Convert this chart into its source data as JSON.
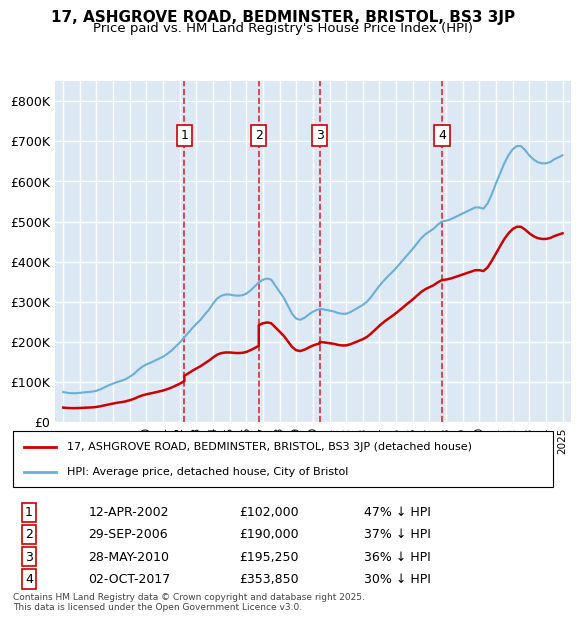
{
  "title1": "17, ASHGROVE ROAD, BEDMINSTER, BRISTOL, BS3 3JP",
  "title2": "Price paid vs. HM Land Registry's House Price Index (HPI)",
  "legend_label1": "17, ASHGROVE ROAD, BEDMINSTER, BRISTOL, BS3 3JP (detached house)",
  "legend_label2": "HPI: Average price, detached house, City of Bristol",
  "footnote": "Contains HM Land Registry data © Crown copyright and database right 2025.\nThis data is licensed under the Open Government Licence v3.0.",
  "sale_markers": [
    {
      "num": 1,
      "date": "12-APR-2002",
      "price": 102000,
      "pct": "47% ↓ HPI",
      "x": 2002.28
    },
    {
      "num": 2,
      "date": "29-SEP-2006",
      "price": 190000,
      "pct": "37% ↓ HPI",
      "x": 2006.75
    },
    {
      "num": 3,
      "date": "28-MAY-2010",
      "price": 195250,
      "pct": "36% ↓ HPI",
      "x": 2010.41
    },
    {
      "num": 4,
      "date": "02-OCT-2017",
      "price": 353850,
      "pct": "30% ↓ HPI",
      "x": 2017.75
    }
  ],
  "hpi_color": "#6baed6",
  "price_color": "#cc0000",
  "marker_box_color": "#cc0000",
  "background_color": "#dce9f5",
  "plot_bg": "#dce9f5",
  "grid_color": "#ffffff",
  "ylim": [
    0,
    850000
  ],
  "xlim": [
    1994.5,
    2025.5
  ],
  "yticks": [
    0,
    100000,
    200000,
    300000,
    400000,
    500000,
    600000,
    700000,
    800000
  ],
  "hpi_data": {
    "x": [
      1995.0,
      1995.25,
      1995.5,
      1995.75,
      1996.0,
      1996.25,
      1996.5,
      1996.75,
      1997.0,
      1997.25,
      1997.5,
      1997.75,
      1998.0,
      1998.25,
      1998.5,
      1998.75,
      1999.0,
      1999.25,
      1999.5,
      1999.75,
      2000.0,
      2000.25,
      2000.5,
      2000.75,
      2001.0,
      2001.25,
      2001.5,
      2001.75,
      2002.0,
      2002.25,
      2002.5,
      2002.75,
      2003.0,
      2003.25,
      2003.5,
      2003.75,
      2004.0,
      2004.25,
      2004.5,
      2004.75,
      2005.0,
      2005.25,
      2005.5,
      2005.75,
      2006.0,
      2006.25,
      2006.5,
      2006.75,
      2007.0,
      2007.25,
      2007.5,
      2007.75,
      2008.0,
      2008.25,
      2008.5,
      2008.75,
      2009.0,
      2009.25,
      2009.5,
      2009.75,
      2010.0,
      2010.25,
      2010.5,
      2010.75,
      2011.0,
      2011.25,
      2011.5,
      2011.75,
      2012.0,
      2012.25,
      2012.5,
      2012.75,
      2013.0,
      2013.25,
      2013.5,
      2013.75,
      2014.0,
      2014.25,
      2014.5,
      2014.75,
      2015.0,
      2015.25,
      2015.5,
      2015.75,
      2016.0,
      2016.25,
      2016.5,
      2016.75,
      2017.0,
      2017.25,
      2017.5,
      2017.75,
      2018.0,
      2018.25,
      2018.5,
      2018.75,
      2019.0,
      2019.25,
      2019.5,
      2019.75,
      2020.0,
      2020.25,
      2020.5,
      2020.75,
      2021.0,
      2021.25,
      2021.5,
      2021.75,
      2022.0,
      2022.25,
      2022.5,
      2022.75,
      2023.0,
      2023.25,
      2023.5,
      2023.75,
      2024.0,
      2024.25,
      2024.5,
      2024.75,
      2025.0
    ],
    "y": [
      75000,
      73000,
      72000,
      72000,
      73000,
      74000,
      75000,
      76000,
      78000,
      82000,
      87000,
      92000,
      96000,
      100000,
      103000,
      107000,
      113000,
      120000,
      130000,
      138000,
      144000,
      148000,
      153000,
      158000,
      163000,
      170000,
      178000,
      188000,
      198000,
      210000,
      222000,
      234000,
      245000,
      255000,
      268000,
      280000,
      295000,
      308000,
      315000,
      318000,
      318000,
      316000,
      315000,
      316000,
      320000,
      328000,
      338000,
      348000,
      355000,
      358000,
      355000,
      340000,
      325000,
      310000,
      290000,
      270000,
      258000,
      255000,
      260000,
      268000,
      275000,
      280000,
      282000,
      280000,
      278000,
      276000,
      272000,
      270000,
      270000,
      274000,
      280000,
      286000,
      292000,
      300000,
      312000,
      326000,
      340000,
      352000,
      363000,
      373000,
      384000,
      396000,
      408000,
      420000,
      432000,
      445000,
      458000,
      468000,
      475000,
      482000,
      492000,
      500000,
      502000,
      505000,
      510000,
      515000,
      520000,
      525000,
      530000,
      535000,
      535000,
      532000,
      545000,
      568000,
      595000,
      620000,
      645000,
      665000,
      680000,
      688000,
      688000,
      678000,
      665000,
      655000,
      648000,
      645000,
      645000,
      648000,
      655000,
      660000,
      665000
    ]
  },
  "price_data": {
    "x": [
      1995.0,
      1995.25,
      1995.5,
      1995.75,
      1996.0,
      1996.25,
      1996.5,
      1996.75,
      1997.0,
      1997.25,
      1997.5,
      1997.75,
      1998.0,
      1998.25,
      1998.5,
      1998.75,
      1999.0,
      1999.25,
      1999.5,
      1999.75,
      2000.0,
      2000.25,
      2000.5,
      2000.75,
      2001.0,
      2001.25,
      2001.5,
      2001.75,
      2002.0,
      2002.28,
      2006.75,
      2010.41,
      2017.75,
      2025.0
    ],
    "y": [
      48000,
      47000,
      47000,
      47500,
      48000,
      49000,
      50000,
      51000,
      53000,
      56000,
      59000,
      62000,
      65000,
      68000,
      70000,
      72000,
      74000,
      78000,
      83000,
      87000,
      91000,
      94000,
      97000,
      100000,
      100500,
      101000,
      101500,
      101800,
      102000,
      102000,
      190000,
      195250,
      353850,
      460000
    ]
  }
}
